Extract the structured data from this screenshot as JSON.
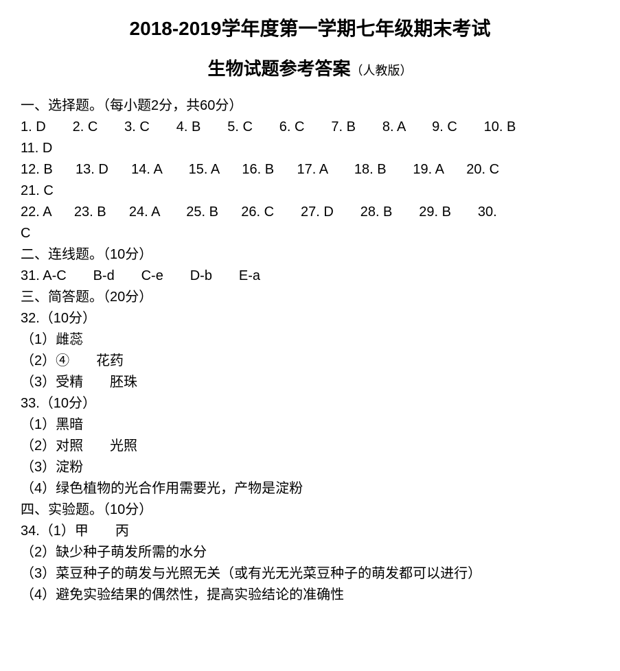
{
  "title1": "2018-2019学年度第一学期七年级期末考试",
  "title2_main": "生物试题参考答案",
  "title2_note": "（人教版）",
  "section1_header": "一、选择题。（每小题2分，共60分）",
  "mc_row1": "1. D       2. C       3. C       4. B       5. C       6. C       7. B       8. A       9. C       10. B",
  "mc_row2": "11. D",
  "mc_row3": "12. B      13. D      14. A       15. A      16. B      17. A       18. B       19. A      20. C",
  "mc_row4": "21. C",
  "mc_row5": "22. A      23. B      24. A       25. B      26. C       27. D       28. B       29. B       30.",
  "mc_row6": "C",
  "section2_header": "二、连线题。（10分）",
  "q31": "31. A-C       B-d       C-e       D-b       E-a",
  "section3_header": "三、简答题。（20分）",
  "q32_header": "32.（10分）",
  "q32_1": "（1）雌蕊",
  "q32_2": "（2）④       花药",
  "q32_3": "（3）受精       胚珠",
  "q33_header": "33.（10分）",
  "q33_1": "（1）黑暗",
  "q33_2": "（2）对照       光照",
  "q33_3": "（3）淀粉",
  "q33_4": "（4）绿色植物的光合作用需要光，产物是淀粉",
  "section4_header": "四、实验题。（10分）",
  "q34_1": "34.（1）甲       丙",
  "q34_2": "（2）缺少种子萌发所需的水分",
  "q34_3": "（3）菜豆种子的萌发与光照无关（或有光无光菜豆种子的萌发都可以进行）",
  "q34_4": "（4）避免实验结果的偶然性，提高实验结论的准确性"
}
